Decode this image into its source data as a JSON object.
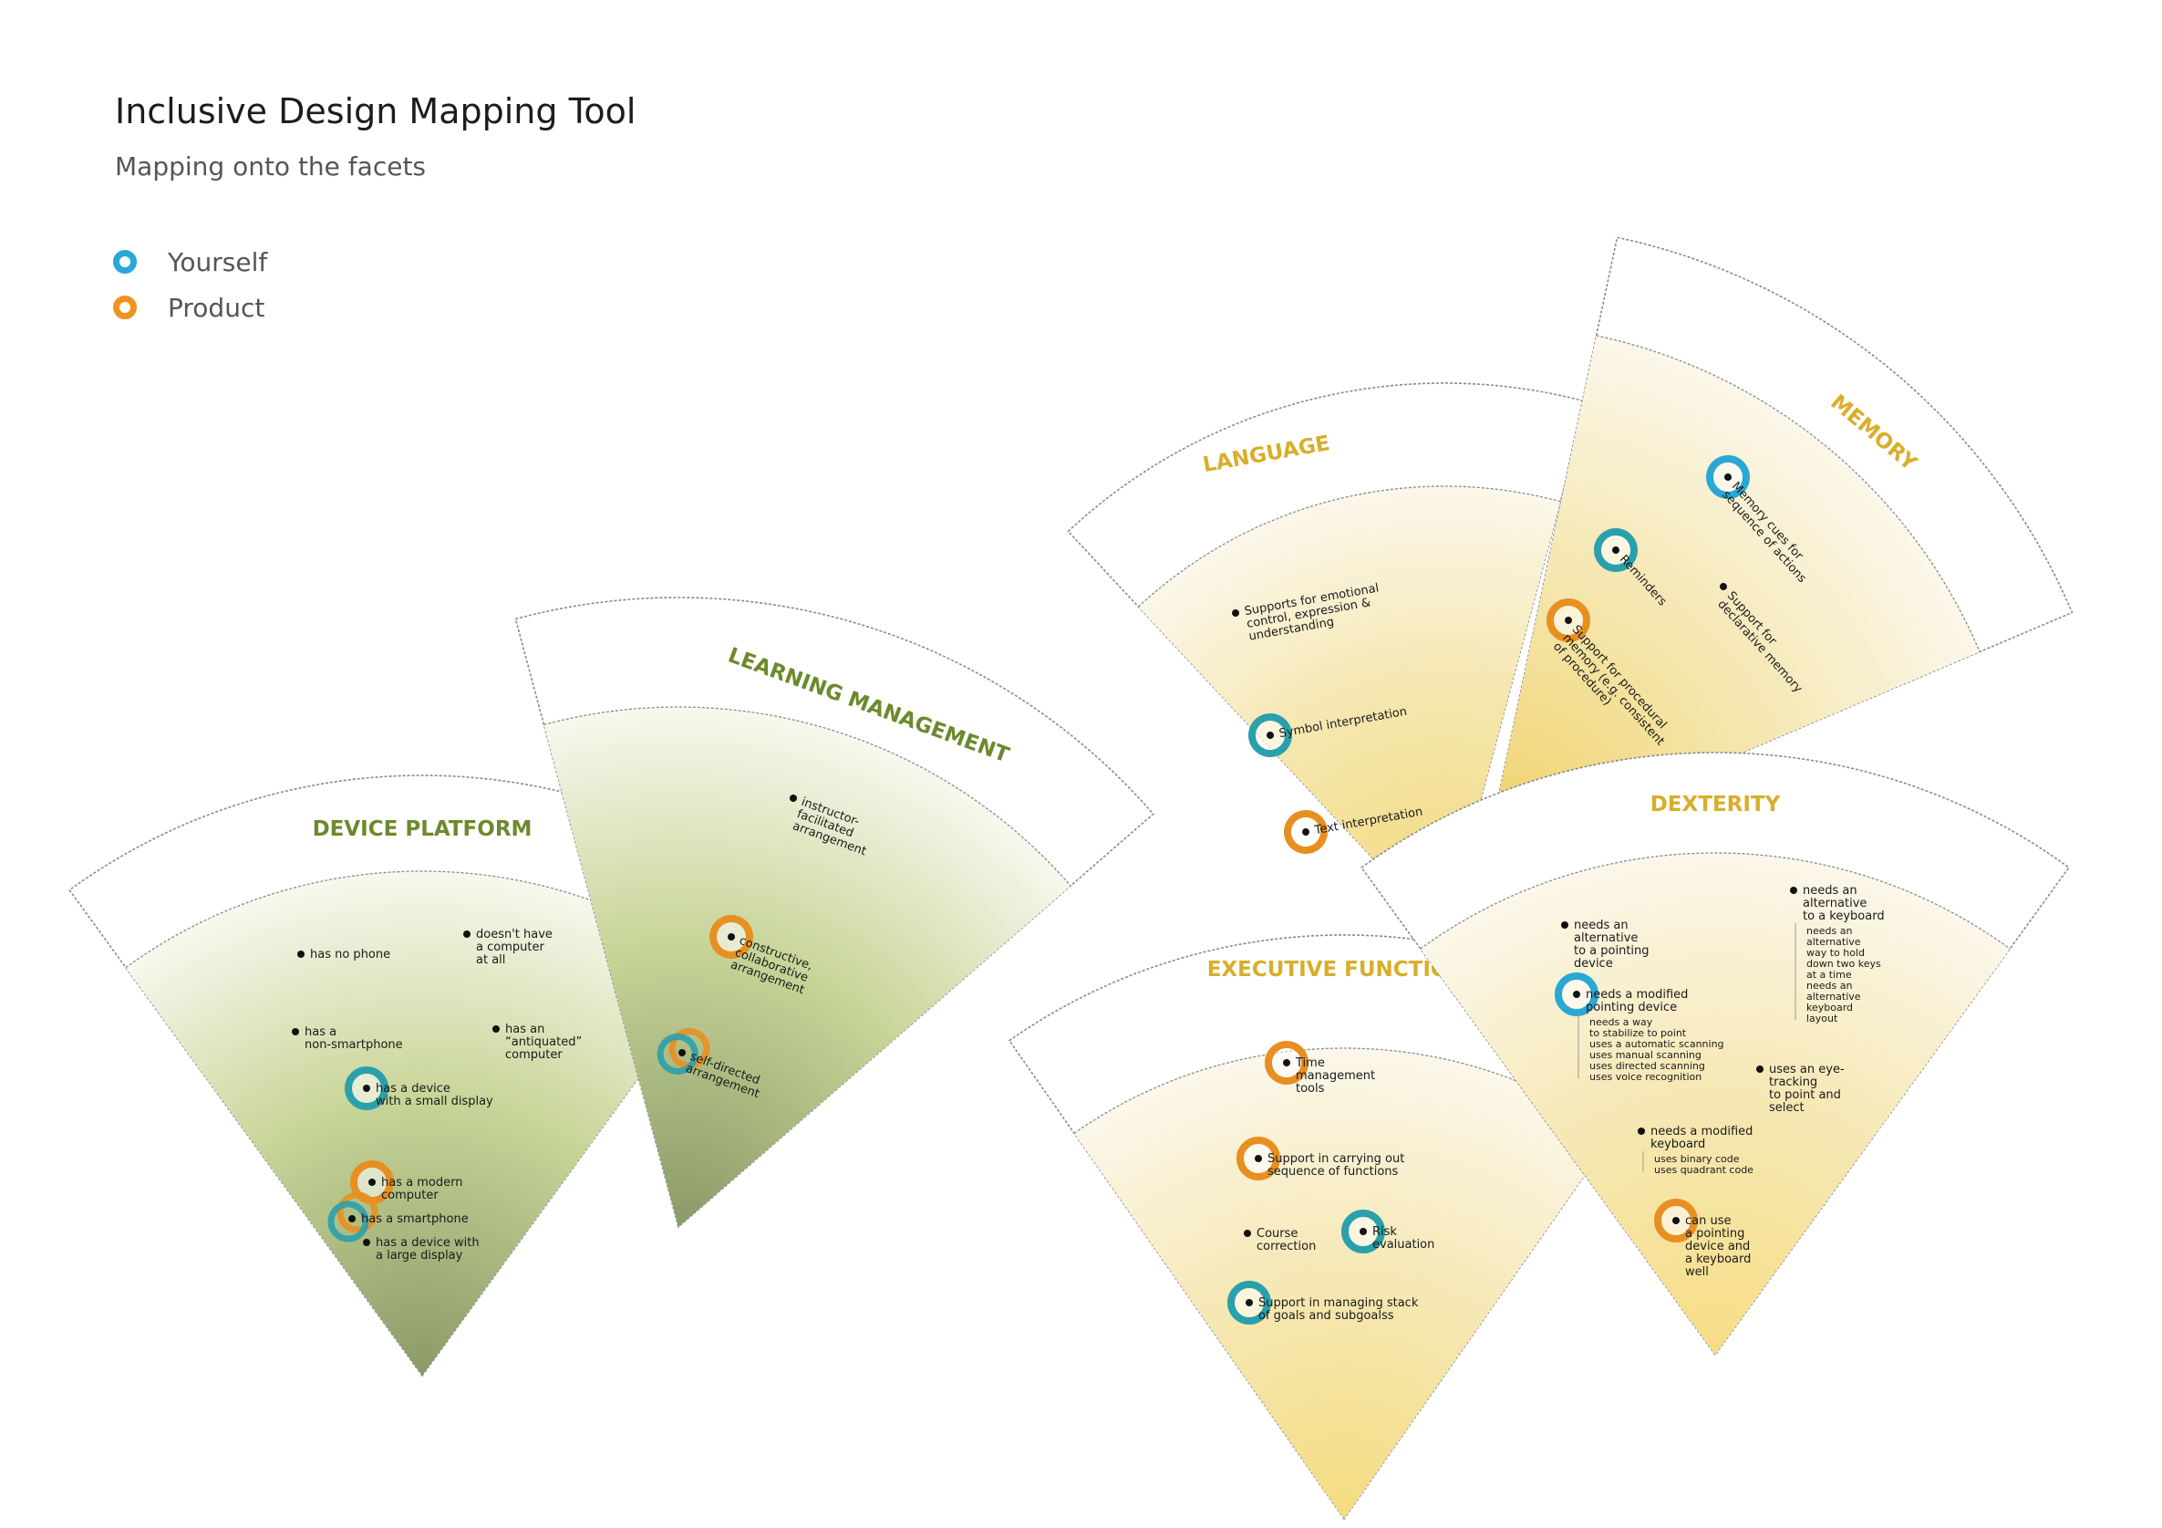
{
  "header": {
    "title": "Inclusive Design Mapping Tool",
    "subtitle": "Mapping onto the facets"
  },
  "legend": [
    {
      "label": "Yourself",
      "color": "#29a8d6"
    },
    {
      "label": "Product",
      "color": "#f2921f"
    }
  ],
  "colors": {
    "green_title": "#6b8a2c",
    "gold_title": "#d8ae2a",
    "teal_marker": "#2aa0ac",
    "orange_marker": "#e88f22",
    "border": "#8a8a8a"
  },
  "facets": [
    {
      "name": "device-platform",
      "title": "DEVICE PLATFORM",
      "theme": "green",
      "items": [
        {
          "lines": [
            "has no phone"
          ],
          "marker": "none"
        },
        {
          "lines": [
            "doesn't have",
            "a computer",
            "at all"
          ],
          "marker": "none"
        },
        {
          "lines": [
            "has a",
            "non-smartphone"
          ],
          "marker": "none"
        },
        {
          "lines": [
            "has an",
            "“antiquated”",
            "computer"
          ],
          "marker": "none"
        },
        {
          "lines": [
            "has a device",
            "with a small display"
          ],
          "marker": "teal"
        },
        {
          "lines": [
            "has a modern",
            "computer"
          ],
          "marker": "orange"
        },
        {
          "lines": [
            "has a smartphone"
          ],
          "marker": "both"
        },
        {
          "lines": [
            "has a device with",
            "a large display"
          ],
          "marker": "none"
        }
      ]
    },
    {
      "name": "learning-management",
      "title": "LEARNING MANAGEMENT",
      "theme": "green",
      "items": [
        {
          "lines": [
            "instructor-",
            "facilitated",
            "arrangement"
          ],
          "marker": "none"
        },
        {
          "lines": [
            "constructive,",
            "collaborative",
            "arrangement"
          ],
          "marker": "orange"
        },
        {
          "lines": [
            "self-directed",
            "arrangement"
          ],
          "marker": "both"
        }
      ]
    },
    {
      "name": "language",
      "title": "LANGUAGE",
      "theme": "gold",
      "items": [
        {
          "lines": [
            "Supports for emotional",
            "control, expression &",
            "understanding"
          ],
          "marker": "none"
        },
        {
          "lines": [
            "Symbol interpretation"
          ],
          "marker": "teal"
        },
        {
          "lines": [
            "Text interpretation"
          ],
          "marker": "orange"
        }
      ]
    },
    {
      "name": "memory",
      "title": "MEMORY",
      "theme": "gold",
      "items": [
        {
          "lines": [
            "Memory cues for",
            "sequence of actions"
          ],
          "marker": "blue"
        },
        {
          "lines": [
            "Reminders"
          ],
          "marker": "teal"
        },
        {
          "lines": [
            "Support for",
            "declarative memory"
          ],
          "marker": "none"
        },
        {
          "lines": [
            "Support for procedural",
            "memory (e.g. consistent",
            "of procedure)"
          ],
          "marker": "orange"
        }
      ]
    },
    {
      "name": "executive-functions",
      "title": "EXECUTIVE FUNCTIONS",
      "theme": "gold",
      "items": [
        {
          "lines": [
            "Time",
            "management",
            "tools"
          ],
          "marker": "orange"
        },
        {
          "lines": [
            "Support in carrying out",
            "sequence of functions"
          ],
          "marker": "orange"
        },
        {
          "lines": [
            "Course",
            "correction"
          ],
          "marker": "none"
        },
        {
          "lines": [
            "Risk",
            "evaluation"
          ],
          "marker": "teal"
        },
        {
          "lines": [
            "Support in managing stack",
            "of goals and subgoalss"
          ],
          "marker": "teal"
        }
      ]
    },
    {
      "name": "dexterity",
      "title": "DEXTERITY",
      "theme": "gold",
      "items": [
        {
          "lines": [
            "needs an",
            "alternative",
            "to a pointing",
            "device"
          ],
          "marker": "none"
        },
        {
          "lines": [
            "needs a modified",
            "pointing device"
          ],
          "marker": "blue",
          "subitems": [
            "needs a way",
            "to stabilize to point",
            "uses a automatic scanning",
            "uses manual scanning",
            "uses directed scanning",
            "uses voice recognition"
          ]
        },
        {
          "lines": [
            "needs an",
            "alternative",
            "to a keyboard"
          ],
          "marker": "none",
          "subitems": [
            "needs an",
            "alternative",
            "way to hold",
            "down two keys",
            "at a time",
            "needs an",
            "alternative",
            "keyboard",
            "layout"
          ]
        },
        {
          "lines": [
            "uses an eye-",
            "tracking",
            "to point and",
            "select"
          ],
          "marker": "none"
        },
        {
          "lines": [
            "needs a modified",
            "keyboard"
          ],
          "marker": "none",
          "subitems": [
            "uses binary code",
            "uses quadrant code"
          ]
        },
        {
          "lines": [
            "can use",
            "a pointing",
            "device and",
            "a keyboard",
            "well"
          ],
          "marker": "orange"
        }
      ]
    }
  ]
}
